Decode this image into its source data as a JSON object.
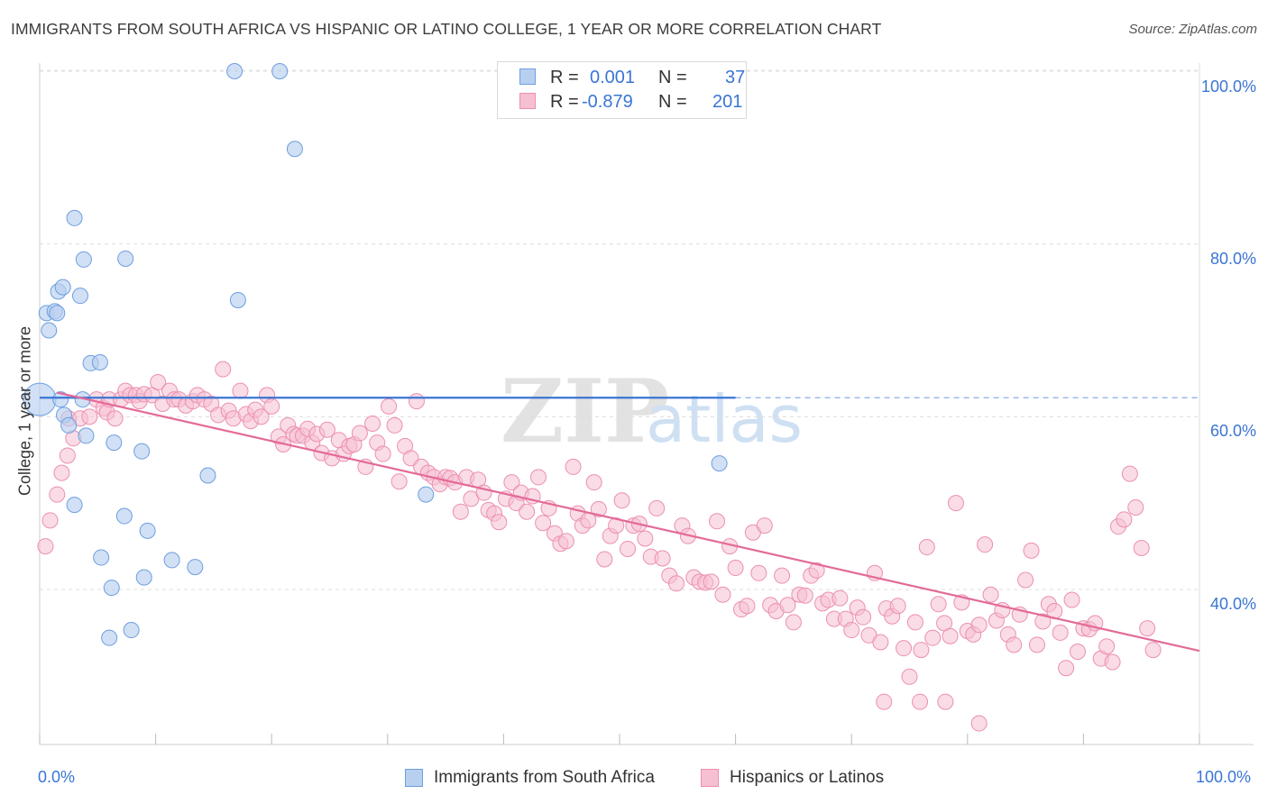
{
  "title": "IMMIGRANTS FROM SOUTH AFRICA VS HISPANIC OR LATINO COLLEGE, 1 YEAR OR MORE CORRELATION CHART",
  "source": "Source: ZipAtlas.com",
  "watermark": "ZIPatlas",
  "colors": {
    "blue_fill": "#b8d0f0",
    "blue_stroke": "#6d9ee0",
    "blue_line": "#3a75d4",
    "pink_fill": "#f6bfd2",
    "pink_stroke": "#ec8fb0",
    "pink_line": "#e36a98",
    "axis_label": "#3a75d4",
    "grid": "#dddddd"
  },
  "legend": {
    "rows": [
      {
        "r_label": "R =",
        "r_value": "0.001",
        "n_label": "N =",
        "n_value": "37"
      },
      {
        "r_label": "R =",
        "r_value": "-0.879",
        "n_label": "N =",
        "n_value": "201"
      }
    ]
  },
  "bottom_legend": [
    "Immigrants from South Africa",
    "Hispanics or Latinos"
  ],
  "axis": {
    "y_title": "College, 1 year or more",
    "y_ticks": [
      "100.0%",
      "80.0%",
      "60.0%",
      "40.0%"
    ],
    "x_left": "0.0%",
    "x_right": "100.0%"
  },
  "chart_data": {
    "type": "scatter",
    "title": "IMMIGRANTS FROM SOUTH AFRICA VS HISPANIC OR LATINO COLLEGE, 1 YEAR OR MORE CORRELATION CHART",
    "xlabel": "",
    "ylabel": "College, 1 year or more",
    "xlim": [
      0,
      100
    ],
    "ylim": [
      20,
      103
    ],
    "grid": true,
    "series": [
      {
        "name": "Immigrants from South Africa",
        "color": "#6d9ee0",
        "trend": {
          "x": [
            0,
            60
          ],
          "y": [
            62.2,
            62.2
          ],
          "dashed_extension_to": 100
        },
        "points": [
          [
            0.0,
            62.0
          ],
          [
            0.6,
            72.0
          ],
          [
            0.8,
            70.0
          ],
          [
            1.3,
            72.2
          ],
          [
            1.5,
            72.0
          ],
          [
            1.6,
            74.5
          ],
          [
            1.8,
            62.0
          ],
          [
            2.0,
            75.0
          ],
          [
            2.1,
            60.2
          ],
          [
            2.5,
            59.0
          ],
          [
            3.0,
            83.0
          ],
          [
            3.5,
            74.0
          ],
          [
            3.7,
            62.0
          ],
          [
            3.8,
            78.2
          ],
          [
            4.0,
            57.8
          ],
          [
            4.4,
            66.2
          ],
          [
            5.2,
            66.3
          ],
          [
            3.0,
            49.8
          ],
          [
            5.3,
            43.7
          ],
          [
            6.4,
            57.0
          ],
          [
            7.3,
            48.5
          ],
          [
            7.4,
            78.3
          ],
          [
            8.8,
            56.0
          ],
          [
            9.3,
            46.8
          ],
          [
            9.0,
            41.4
          ],
          [
            11.4,
            43.4
          ],
          [
            13.4,
            42.6
          ],
          [
            14.5,
            53.2
          ],
          [
            16.8,
            100.0
          ],
          [
            17.1,
            73.5
          ],
          [
            20.7,
            100.0
          ],
          [
            22.0,
            91.0
          ],
          [
            33.3,
            51.0
          ],
          [
            58.6,
            54.6
          ],
          [
            6.2,
            40.2
          ],
          [
            6.0,
            34.4
          ],
          [
            7.9,
            35.3
          ]
        ]
      },
      {
        "name": "Hispanics or Latinos",
        "color": "#ec8fb0",
        "trend": {
          "x": [
            1.5,
            100
          ],
          "y": [
            62.8,
            32.9
          ]
        },
        "points": [
          [
            0.5,
            45.0
          ],
          [
            0.9,
            48.0
          ],
          [
            1.5,
            51.0
          ],
          [
            1.9,
            53.5
          ],
          [
            2.4,
            55.5
          ],
          [
            2.5,
            59.8
          ],
          [
            2.9,
            57.5
          ],
          [
            3.5,
            59.8
          ],
          [
            4.3,
            60.0
          ],
          [
            4.9,
            62.0
          ],
          [
            5.5,
            61.0
          ],
          [
            5.8,
            60.5
          ],
          [
            6.0,
            62.0
          ],
          [
            6.5,
            59.8
          ],
          [
            7.0,
            62.0
          ],
          [
            7.4,
            63.0
          ],
          [
            7.8,
            62.5
          ],
          [
            8.3,
            62.5
          ],
          [
            8.6,
            61.8
          ],
          [
            9.0,
            62.6
          ],
          [
            9.7,
            62.5
          ],
          [
            10.2,
            64.0
          ],
          [
            10.6,
            61.5
          ],
          [
            11.2,
            63.0
          ],
          [
            11.6,
            62.0
          ],
          [
            12.0,
            62.0
          ],
          [
            12.6,
            61.3
          ],
          [
            13.2,
            61.8
          ],
          [
            13.6,
            62.5
          ],
          [
            14.2,
            62.0
          ],
          [
            14.8,
            61.5
          ],
          [
            15.4,
            60.2
          ],
          [
            15.8,
            65.5
          ],
          [
            16.3,
            60.7
          ],
          [
            16.7,
            59.8
          ],
          [
            17.3,
            63.0
          ],
          [
            17.8,
            60.3
          ],
          [
            18.2,
            59.5
          ],
          [
            18.6,
            60.8
          ],
          [
            19.1,
            60.0
          ],
          [
            19.6,
            62.5
          ],
          [
            20.0,
            61.2
          ],
          [
            20.6,
            57.7
          ],
          [
            21.0,
            56.8
          ],
          [
            21.4,
            59.0
          ],
          [
            21.9,
            58.0
          ],
          [
            22.2,
            57.8
          ],
          [
            22.7,
            57.8
          ],
          [
            23.1,
            58.6
          ],
          [
            23.5,
            57.0
          ],
          [
            23.9,
            58.0
          ],
          [
            24.3,
            55.8
          ],
          [
            24.8,
            58.5
          ],
          [
            25.2,
            55.2
          ],
          [
            25.8,
            57.3
          ],
          [
            26.2,
            55.7
          ],
          [
            26.7,
            56.6
          ],
          [
            27.1,
            56.8
          ],
          [
            27.6,
            58.1
          ],
          [
            28.1,
            54.2
          ],
          [
            28.7,
            59.2
          ],
          [
            29.1,
            57.0
          ],
          [
            29.6,
            55.7
          ],
          [
            30.1,
            61.2
          ],
          [
            30.6,
            59.0
          ],
          [
            31.0,
            52.5
          ],
          [
            31.5,
            56.6
          ],
          [
            32.0,
            55.2
          ],
          [
            32.5,
            61.8
          ],
          [
            32.9,
            54.2
          ],
          [
            33.5,
            53.5
          ],
          [
            34.0,
            53.0
          ],
          [
            34.5,
            52.2
          ],
          [
            35.0,
            53.0
          ],
          [
            35.4,
            52.9
          ],
          [
            35.8,
            52.4
          ],
          [
            36.3,
            49.0
          ],
          [
            36.8,
            53.0
          ],
          [
            37.2,
            50.5
          ],
          [
            37.8,
            52.7
          ],
          [
            38.3,
            51.2
          ],
          [
            38.7,
            49.2
          ],
          [
            39.2,
            48.8
          ],
          [
            39.6,
            47.8
          ],
          [
            40.2,
            50.5
          ],
          [
            40.7,
            52.4
          ],
          [
            41.1,
            50.0
          ],
          [
            41.5,
            51.2
          ],
          [
            42.0,
            49.0
          ],
          [
            42.5,
            50.8
          ],
          [
            43.0,
            53.0
          ],
          [
            43.4,
            47.7
          ],
          [
            43.9,
            49.4
          ],
          [
            44.4,
            46.5
          ],
          [
            44.9,
            45.3
          ],
          [
            45.4,
            45.6
          ],
          [
            46.0,
            54.2
          ],
          [
            46.4,
            48.8
          ],
          [
            46.8,
            47.4
          ],
          [
            47.3,
            48.0
          ],
          [
            47.8,
            52.4
          ],
          [
            48.2,
            49.3
          ],
          [
            48.7,
            43.5
          ],
          [
            49.2,
            46.2
          ],
          [
            49.7,
            47.4
          ],
          [
            50.2,
            50.3
          ],
          [
            50.7,
            44.7
          ],
          [
            51.2,
            47.4
          ],
          [
            51.7,
            47.6
          ],
          [
            52.2,
            45.9
          ],
          [
            52.7,
            43.8
          ],
          [
            53.2,
            49.4
          ],
          [
            53.7,
            43.6
          ],
          [
            54.3,
            41.6
          ],
          [
            54.9,
            40.7
          ],
          [
            55.4,
            47.4
          ],
          [
            55.9,
            46.2
          ],
          [
            56.4,
            41.4
          ],
          [
            56.9,
            40.9
          ],
          [
            57.4,
            40.8
          ],
          [
            57.9,
            40.9
          ],
          [
            58.4,
            47.9
          ],
          [
            58.9,
            39.4
          ],
          [
            59.5,
            45.0
          ],
          [
            60.0,
            42.5
          ],
          [
            60.5,
            37.7
          ],
          [
            61.0,
            38.1
          ],
          [
            61.5,
            46.6
          ],
          [
            62.0,
            41.9
          ],
          [
            62.5,
            47.4
          ],
          [
            63.0,
            38.2
          ],
          [
            63.5,
            37.5
          ],
          [
            64.0,
            41.6
          ],
          [
            64.5,
            38.2
          ],
          [
            65.0,
            36.2
          ],
          [
            65.5,
            39.4
          ],
          [
            66.0,
            39.3
          ],
          [
            66.5,
            41.6
          ],
          [
            67.0,
            42.2
          ],
          [
            67.5,
            38.4
          ],
          [
            68.0,
            38.8
          ],
          [
            68.5,
            36.6
          ],
          [
            69.0,
            39.0
          ],
          [
            69.5,
            36.6
          ],
          [
            70.0,
            35.3
          ],
          [
            70.5,
            37.9
          ],
          [
            71.0,
            36.8
          ],
          [
            71.5,
            34.7
          ],
          [
            72.0,
            41.9
          ],
          [
            72.5,
            33.9
          ],
          [
            73.0,
            37.8
          ],
          [
            73.5,
            36.9
          ],
          [
            74.0,
            38.1
          ],
          [
            74.5,
            33.2
          ],
          [
            75.0,
            29.9
          ],
          [
            75.5,
            36.2
          ],
          [
            76.0,
            33.0
          ],
          [
            76.5,
            44.9
          ],
          [
            77.0,
            34.4
          ],
          [
            77.5,
            38.3
          ],
          [
            78.0,
            36.1
          ],
          [
            78.5,
            34.6
          ],
          [
            79.0,
            50.0
          ],
          [
            79.5,
            38.5
          ],
          [
            80.0,
            35.2
          ],
          [
            80.5,
            34.8
          ],
          [
            81.0,
            35.9
          ],
          [
            81.5,
            45.2
          ],
          [
            82.0,
            39.4
          ],
          [
            82.5,
            36.4
          ],
          [
            83.0,
            37.6
          ],
          [
            83.5,
            34.8
          ],
          [
            84.0,
            33.6
          ],
          [
            84.5,
            37.1
          ],
          [
            85.0,
            41.1
          ],
          [
            85.5,
            44.5
          ],
          [
            86.0,
            33.6
          ],
          [
            86.5,
            36.3
          ],
          [
            87.0,
            38.3
          ],
          [
            87.5,
            37.5
          ],
          [
            88.0,
            35.0
          ],
          [
            88.5,
            30.9
          ],
          [
            89.0,
            38.8
          ],
          [
            89.5,
            32.8
          ],
          [
            90.0,
            35.5
          ],
          [
            90.5,
            35.4
          ],
          [
            91.0,
            36.1
          ],
          [
            91.5,
            32.0
          ],
          [
            92.0,
            33.4
          ],
          [
            92.5,
            31.6
          ],
          [
            93.0,
            47.3
          ],
          [
            93.5,
            48.1
          ],
          [
            94.0,
            53.4
          ],
          [
            94.5,
            49.5
          ],
          [
            95.0,
            44.8
          ],
          [
            95.5,
            35.5
          ],
          [
            72.8,
            27.0
          ],
          [
            75.9,
            27.0
          ],
          [
            78.1,
            27.0
          ],
          [
            81.0,
            24.5
          ],
          [
            96.0,
            33.0
          ]
        ]
      }
    ]
  }
}
